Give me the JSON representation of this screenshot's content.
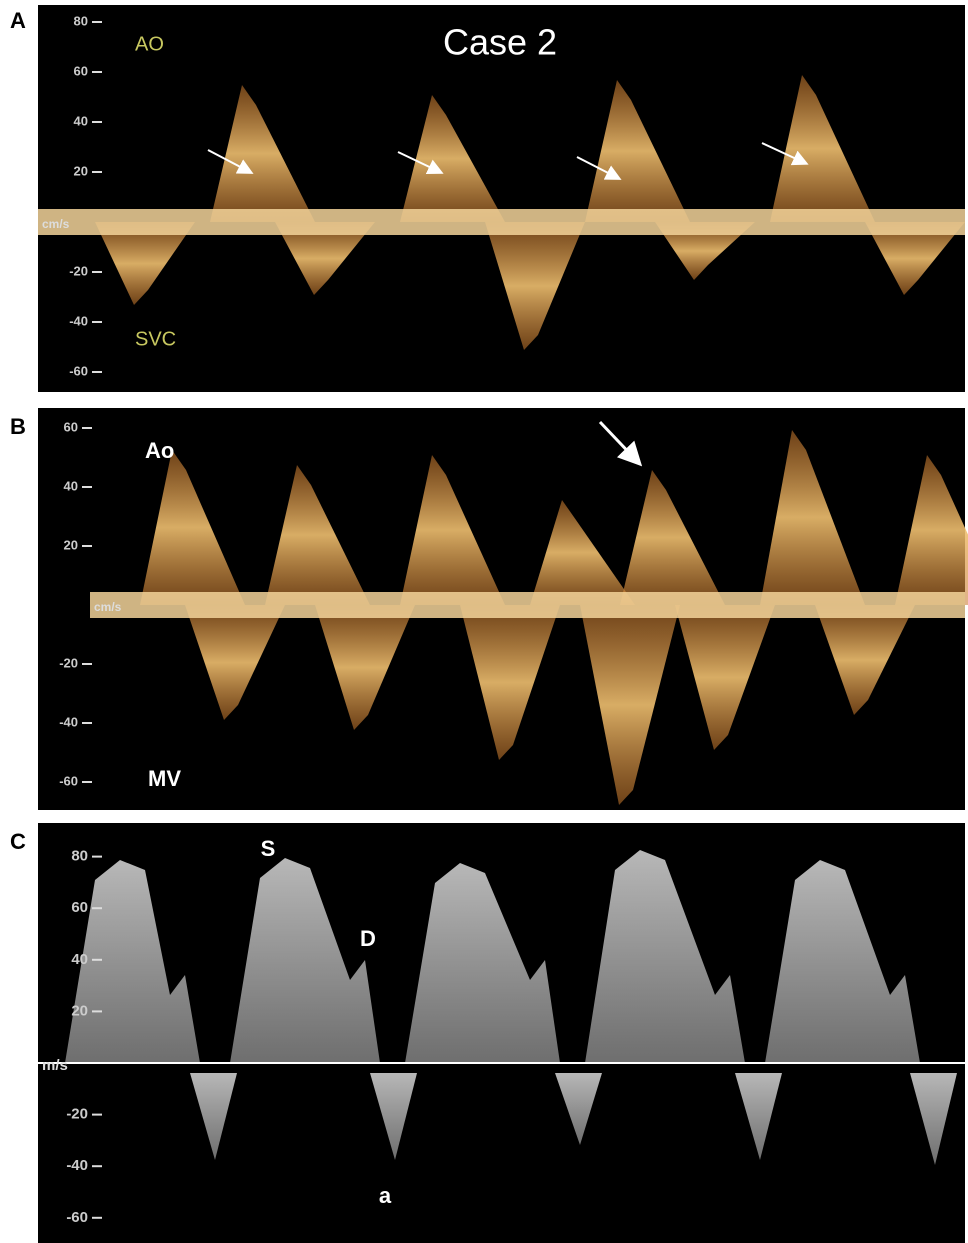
{
  "figure": {
    "panels": [
      {
        "letter": "A",
        "title": "Case 2",
        "top_label": "AO",
        "bottom_label": "SVC",
        "unit": "cm/s",
        "yticks": [
          80,
          60,
          40,
          20,
          -20,
          -40,
          -60
        ]
      },
      {
        "letter": "B",
        "top_label": "Ao",
        "bottom_label": "MV",
        "unit": "cm/s",
        "yticks": [
          60,
          40,
          20,
          -20,
          -40,
          -60
        ]
      },
      {
        "letter": "C",
        "annotations": [
          "S",
          "D",
          "a"
        ],
        "unit": "m/s",
        "yticks": [
          80,
          60,
          40,
          20,
          -20,
          -40,
          -60
        ]
      }
    ]
  }
}
